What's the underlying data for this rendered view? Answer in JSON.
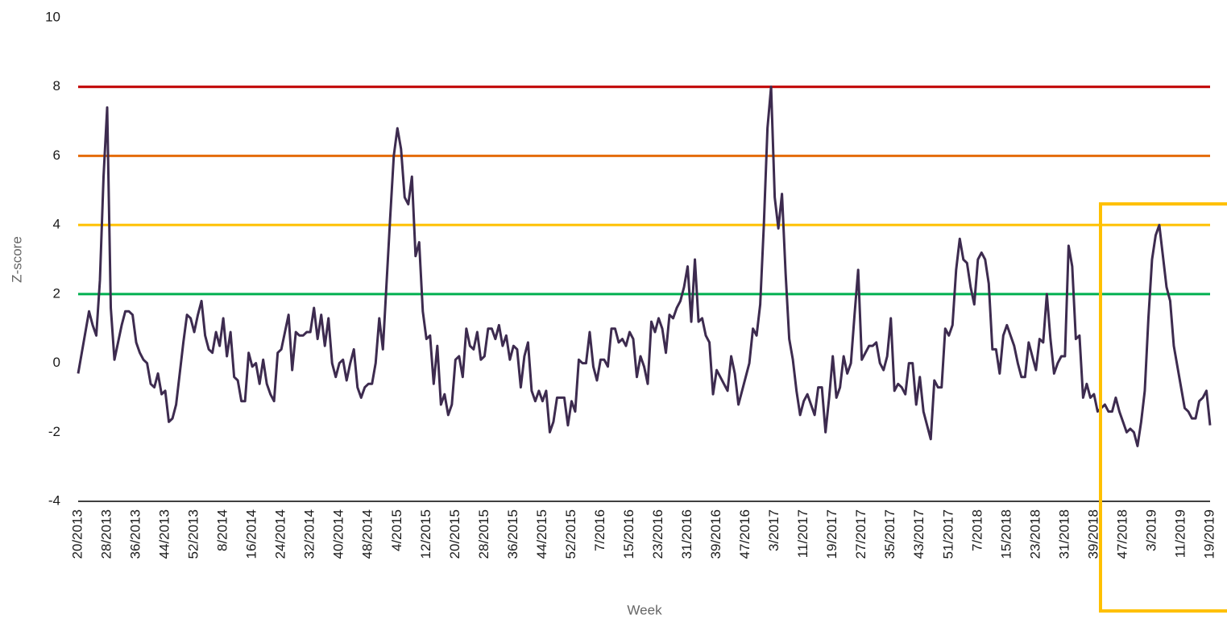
{
  "chart_data": {
    "type": "line",
    "ylabel": "Z-score",
    "xlabel": "Week",
    "ylim": [
      -4,
      10
    ],
    "yticks": [
      -4,
      -2,
      0,
      2,
      4,
      6,
      8,
      10
    ],
    "color": "#3d2b4f",
    "thresholds": [
      {
        "value": 2,
        "color": "#00b050"
      },
      {
        "value": 4,
        "color": "#ffc000"
      },
      {
        "value": 6,
        "color": "#e46c0a"
      },
      {
        "value": 8,
        "color": "#c00000"
      }
    ],
    "categories": [
      "20/2013",
      null,
      null,
      null,
      null,
      null,
      null,
      null,
      "28/2013",
      null,
      null,
      null,
      null,
      null,
      null,
      null,
      "36/2013",
      null,
      null,
      null,
      null,
      null,
      null,
      null,
      "44/2013",
      null,
      null,
      null,
      null,
      null,
      null,
      null,
      "52/2013",
      null,
      null,
      null,
      null,
      null,
      null,
      null,
      "8/2014",
      null,
      null,
      null,
      null,
      null,
      null,
      null,
      "16/2014",
      null,
      null,
      null,
      null,
      null,
      null,
      null,
      "24/2014",
      null,
      null,
      null,
      null,
      null,
      null,
      null,
      "32/2014",
      null,
      null,
      null,
      null,
      null,
      null,
      null,
      "40/2014",
      null,
      null,
      null,
      null,
      null,
      null,
      null,
      "48/2014",
      null,
      null,
      null,
      null,
      null,
      null,
      null,
      "4/2015",
      null,
      null,
      null,
      null,
      null,
      null,
      null,
      "12/2015",
      null,
      null,
      null,
      null,
      null,
      null,
      null,
      "20/2015",
      null,
      null,
      null,
      null,
      null,
      null,
      null,
      "28/2015",
      null,
      null,
      null,
      null,
      null,
      null,
      null,
      "36/2015",
      null,
      null,
      null,
      null,
      null,
      null,
      null,
      "44/2015",
      null,
      null,
      null,
      null,
      null,
      null,
      null,
      "52/2015",
      null,
      null,
      null,
      null,
      null,
      null,
      null,
      "7/2016",
      null,
      null,
      null,
      null,
      null,
      null,
      null,
      "15/2016",
      null,
      null,
      null,
      null,
      null,
      null,
      null,
      "23/2016",
      null,
      null,
      null,
      null,
      null,
      null,
      null,
      "31/2016",
      null,
      null,
      null,
      null,
      null,
      null,
      null,
      "39/2016",
      null,
      null,
      null,
      null,
      null,
      null,
      null,
      "47/2016",
      null,
      null,
      null,
      null,
      null,
      null,
      null,
      "3/2017",
      null,
      null,
      null,
      null,
      null,
      null,
      null,
      "11/2017",
      null,
      null,
      null,
      null,
      null,
      null,
      null,
      "19/2017",
      null,
      null,
      null,
      null,
      null,
      null,
      null,
      "27/2017",
      null,
      null,
      null,
      null,
      null,
      null,
      null,
      "35/2017",
      null,
      null,
      null,
      null,
      null,
      null,
      null,
      "43/2017",
      null,
      null,
      null,
      null,
      null,
      null,
      null,
      "51/2017",
      null,
      null,
      null,
      null,
      null,
      null,
      null,
      "7/2018",
      null,
      null,
      null,
      null,
      null,
      null,
      null,
      "15/2018",
      null,
      null,
      null,
      null,
      null,
      null,
      null,
      "23/2018",
      null,
      null,
      null,
      null,
      null,
      null,
      null,
      "31/2018",
      null,
      null,
      null,
      null,
      null,
      null,
      null,
      "39/2018",
      null,
      null,
      null,
      null,
      null,
      null,
      null,
      "47/2018",
      null,
      null,
      null,
      null,
      null,
      null,
      null,
      "3/2019",
      null,
      null,
      null,
      null,
      null,
      null,
      null,
      "11/2019",
      null,
      null,
      null,
      null,
      null,
      null,
      null,
      "19/2019"
    ],
    "values": [
      -0.3,
      0.3,
      0.9,
      1.5,
      1.1,
      0.8,
      2.4,
      5.4,
      7.4,
      1.6,
      0.1,
      0.6,
      1.1,
      1.5,
      1.5,
      1.4,
      0.6,
      0.3,
      0.1,
      0.0,
      -0.6,
      -0.7,
      -0.3,
      -0.9,
      -0.8,
      -1.7,
      -1.6,
      -1.2,
      -0.3,
      0.6,
      1.4,
      1.3,
      0.9,
      1.4,
      1.8,
      0.8,
      0.4,
      0.3,
      0.9,
      0.5,
      1.3,
      0.2,
      0.9,
      -0.4,
      -0.5,
      -1.1,
      -1.1,
      0.3,
      -0.1,
      0.0,
      -0.6,
      0.1,
      -0.6,
      -0.9,
      -1.1,
      0.3,
      0.4,
      0.9,
      1.4,
      -0.2,
      0.9,
      0.8,
      0.8,
      0.9,
      0.9,
      1.6,
      0.7,
      1.4,
      0.5,
      1.3,
      0.0,
      -0.4,
      0.0,
      0.1,
      -0.5,
      0.0,
      0.4,
      -0.7,
      -1.0,
      -0.7,
      -0.6,
      -0.6,
      0.0,
      1.3,
      0.4,
      2.3,
      4.2,
      6.0,
      6.8,
      6.2,
      4.8,
      4.6,
      5.4,
      3.1,
      3.5,
      1.5,
      0.7,
      0.8,
      -0.6,
      0.5,
      -1.2,
      -0.9,
      -1.5,
      -1.2,
      0.1,
      0.2,
      -0.4,
      1.0,
      0.5,
      0.4,
      0.9,
      0.1,
      0.2,
      1.0,
      1.0,
      0.7,
      1.1,
      0.5,
      0.8,
      0.1,
      0.5,
      0.4,
      -0.7,
      0.2,
      0.6,
      -0.8,
      -1.1,
      -0.8,
      -1.1,
      -0.8,
      -2.0,
      -1.7,
      -1.0,
      -1.0,
      -1.0,
      -1.8,
      -1.1,
      -1.4,
      0.1,
      0.0,
      0.0,
      0.9,
      -0.1,
      -0.5,
      0.1,
      0.1,
      -0.1,
      1.0,
      1.0,
      0.6,
      0.7,
      0.5,
      0.9,
      0.7,
      -0.4,
      0.2,
      -0.1,
      -0.6,
      1.2,
      0.9,
      1.3,
      1.0,
      0.3,
      1.4,
      1.3,
      1.6,
      1.8,
      2.2,
      2.8,
      1.2,
      3.0,
      1.2,
      1.3,
      0.8,
      0.6,
      -0.9,
      -0.2,
      -0.4,
      -0.6,
      -0.8,
      0.2,
      -0.3,
      -1.2,
      -0.8,
      -0.4,
      0.0,
      1.0,
      0.8,
      1.7,
      4.0,
      6.8,
      8.0,
      4.8,
      3.9,
      4.9,
      2.6,
      0.7,
      0.1,
      -0.8,
      -1.5,
      -1.1,
      -0.9,
      -1.2,
      -1.5,
      -0.7,
      -0.7,
      -2.0,
      -1.0,
      0.2,
      -1.0,
      -0.7,
      0.2,
      -0.3,
      0.0,
      1.4,
      2.7,
      0.1,
      0.3,
      0.5,
      0.5,
      0.6,
      0.0,
      -0.2,
      0.2,
      1.3,
      -0.8,
      -0.6,
      -0.7,
      -0.9,
      0.0,
      0.0,
      -1.2,
      -0.4,
      -1.4,
      -1.8,
      -2.2,
      -0.5,
      -0.7,
      -0.7,
      1.0,
      0.8,
      1.1,
      2.7,
      3.6,
      3.0,
      2.9,
      2.2,
      1.7,
      3.0,
      3.2,
      3.0,
      2.3,
      0.4,
      0.4,
      -0.3,
      0.8,
      1.1,
      0.8,
      0.5,
      0.0,
      -0.4,
      -0.4,
      0.6,
      0.2,
      -0.2,
      0.7,
      0.6,
      2.0,
      0.7,
      -0.3,
      0.0,
      0.2,
      0.2,
      3.4,
      2.8,
      0.7,
      0.8,
      -1.0,
      -0.6,
      -1.0,
      -0.9,
      -1.4,
      -1.3,
      -1.2,
      -1.4,
      -1.4,
      -1.0,
      -1.4,
      -1.7,
      -2.0,
      -1.9,
      -2.0,
      -2.4,
      -1.7,
      -0.8,
      1.3,
      3.0,
      3.7,
      4.0,
      3.1,
      2.2,
      1.8,
      0.5,
      -0.1,
      -0.7,
      -1.3,
      -1.4,
      -1.6,
      -1.6,
      -1.1,
      -1.0,
      -0.8,
      -1.8
    ]
  }
}
